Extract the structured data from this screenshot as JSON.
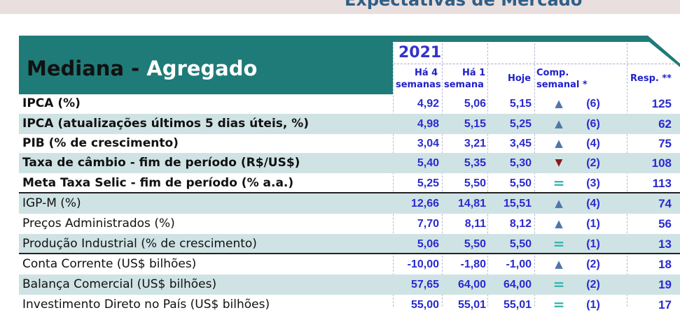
{
  "top_title": "Expectativas de Mercado",
  "header": {
    "title_part1": "Mediana - ",
    "title_part2": "Agregado",
    "year": "2021",
    "col_4sem_line1": "Há 4",
    "col_4sem_line2": "semanas",
    "col_1sem_line1": "Há 1",
    "col_1sem_line2": "semana",
    "col_hoje": "Hoje",
    "col_comp_line1": "Comp.",
    "col_comp_line2": "semanal *",
    "col_resp": "Resp. **"
  },
  "colors": {
    "up": "#4f76a8",
    "down": "#8b1a1a",
    "equal": "#39b5b0",
    "header_bg": "#1f7b78",
    "row_alt": "#cfe3e5",
    "value": "#2a2ad0"
  },
  "rows": [
    {
      "label": "IPCA (%)",
      "bold": true,
      "v4": "4,92",
      "v1": "5,06",
      "hoje": "5,15",
      "trend": "up",
      "arrow": "▲",
      "count": "(6)",
      "resp": "125"
    },
    {
      "label": "IPCA (atualizações últimos 5 dias úteis, %)",
      "bold": true,
      "v4": "4,98",
      "v1": "5,15",
      "hoje": "5,25",
      "trend": "up",
      "arrow": "▲",
      "count": "(6)",
      "resp": "62"
    },
    {
      "label": "PIB (% de crescimento)",
      "bold": true,
      "v4": "3,04",
      "v1": "3,21",
      "hoje": "3,45",
      "trend": "up",
      "arrow": "▲",
      "count": "(4)",
      "resp": "75"
    },
    {
      "label": "Taxa de câmbio - fim de período (R$/US$)",
      "bold": true,
      "v4": "5,40",
      "v1": "5,35",
      "hoje": "5,30",
      "trend": "down",
      "arrow": "▼",
      "count": "(2)",
      "resp": "108"
    },
    {
      "label": "Meta Taxa Selic - fim de período (% a.a.)",
      "bold": true,
      "v4": "5,25",
      "v1": "5,50",
      "hoje": "5,50",
      "trend": "equal",
      "arrow": "=",
      "count": "(3)",
      "resp": "113"
    },
    {
      "label": "IGP-M (%)",
      "bold": false,
      "v4": "12,66",
      "v1": "14,81",
      "hoje": "15,51",
      "trend": "up",
      "arrow": "▲",
      "count": "(4)",
      "resp": "74"
    },
    {
      "label": "Preços Administrados (%)",
      "bold": false,
      "v4": "7,70",
      "v1": "8,11",
      "hoje": "8,12",
      "trend": "up",
      "arrow": "▲",
      "count": "(1)",
      "resp": "56"
    },
    {
      "label": "Produção Industrial (% de crescimento)",
      "bold": false,
      "v4": "5,06",
      "v1": "5,50",
      "hoje": "5,50",
      "trend": "equal",
      "arrow": "=",
      "count": "(1)",
      "resp": "13"
    },
    {
      "label": "Conta Corrente (US$ bilhões)",
      "bold": false,
      "v4": "-10,00",
      "v1": "-1,80",
      "hoje": "-1,00",
      "trend": "up",
      "arrow": "▲",
      "count": "(2)",
      "resp": "18"
    },
    {
      "label": "Balança Comercial (US$ bilhões)",
      "bold": false,
      "v4": "57,65",
      "v1": "64,00",
      "hoje": "64,00",
      "trend": "equal",
      "arrow": "=",
      "count": "(2)",
      "resp": "19"
    },
    {
      "label": "Investimento Direto no País (US$ bilhões)",
      "bold": false,
      "v4": "55,00",
      "v1": "55,01",
      "hoje": "55,01",
      "trend": "equal",
      "arrow": "=",
      "count": "(1)",
      "resp": "17"
    }
  ]
}
